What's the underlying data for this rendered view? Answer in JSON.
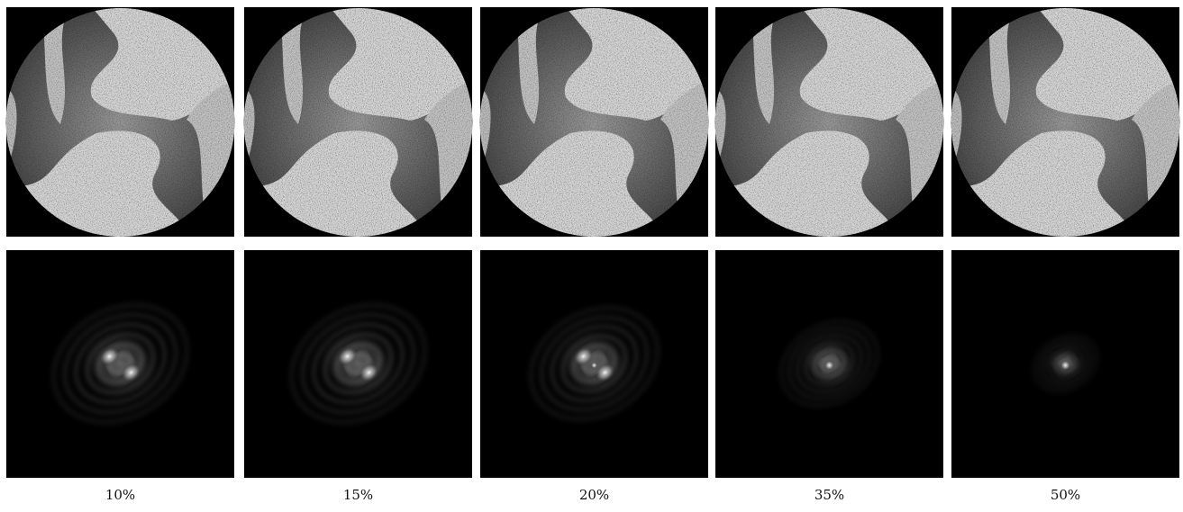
{
  "panels": [
    {
      "label": "10%"
    },
    {
      "label": "15%"
    },
    {
      "label": "20%"
    },
    {
      "label": "35%"
    },
    {
      "label": "50%"
    }
  ]
}
